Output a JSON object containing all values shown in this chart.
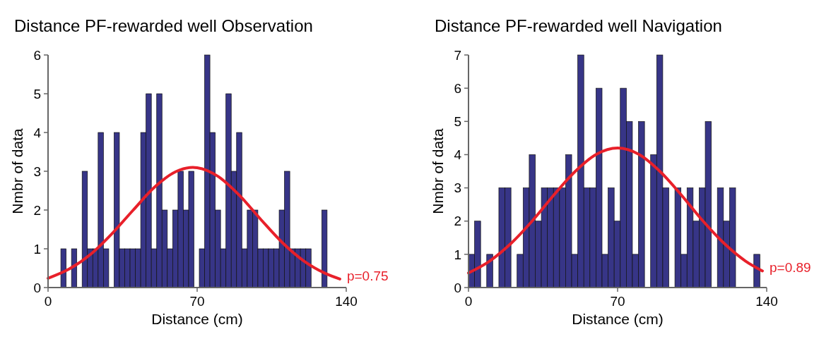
{
  "chart_data": [
    {
      "type": "histogram",
      "title": "Distance PF-rewarded well Observation",
      "xlabel": "Distance (cm)",
      "ylabel": "Nmbr of data",
      "xlim": [
        0,
        140
      ],
      "xticks": [
        0,
        70,
        140
      ],
      "ylim": [
        0,
        6
      ],
      "yticks": [
        0,
        1,
        2,
        3,
        4,
        5,
        6
      ],
      "grid": false,
      "annotations": [
        {
          "text": "p=0.75",
          "x": 137,
          "y": 0.22
        }
      ],
      "series": [
        {
          "color": "#373587",
          "bins": [
            6,
            8.5,
            11,
            13.5,
            16,
            18.5,
            21,
            23.5,
            26,
            28.5,
            31,
            33.5,
            36,
            38.5,
            41,
            43.5,
            46,
            48.5,
            51,
            53.5,
            56,
            58.5,
            61,
            63.5,
            66,
            68.5,
            71,
            73.5,
            76,
            78.5,
            81,
            83.5,
            86,
            88.5,
            91,
            93.5,
            96,
            98.5,
            101,
            103.5,
            106,
            108.5,
            111,
            113.5,
            116,
            118.5,
            121,
            123.5,
            126,
            128.5,
            131
          ],
          "values": [
            1,
            0,
            1,
            0,
            3,
            1,
            1,
            4,
            1,
            0,
            4,
            1,
            1,
            1,
            1,
            4,
            5,
            1,
            5,
            2,
            1,
            2,
            3,
            2,
            3,
            0,
            1,
            6,
            4,
            2,
            1,
            5,
            3,
            4,
            1,
            2,
            2,
            1,
            1,
            1,
            1,
            2,
            3,
            1,
            1,
            1,
            1,
            0,
            0,
            2
          ]
        },
        {
          "type": "line",
          "color": "#e8202a",
          "x": [
            0,
            10,
            20,
            30,
            40,
            50,
            60,
            68,
            70,
            80,
            90,
            100,
            110,
            120,
            130,
            137
          ],
          "values": [
            0.24,
            0.48,
            0.86,
            1.39,
            2.0,
            2.59,
            2.99,
            3.1,
            3.09,
            2.86,
            2.37,
            1.75,
            1.16,
            0.69,
            0.37,
            0.22
          ]
        }
      ]
    },
    {
      "type": "histogram",
      "title": "Distance PF-rewarded well Navigation",
      "xlabel": "Distance (cm)",
      "ylabel": "Nmbr of data",
      "xlim": [
        0,
        140
      ],
      "xticks": [
        0,
        70,
        140
      ],
      "ylim": [
        0,
        7
      ],
      "yticks": [
        0,
        1,
        2,
        3,
        4,
        5,
        6,
        7
      ],
      "grid": false,
      "annotations": [
        {
          "text": "p=0.89",
          "x": 138,
          "y": 0.5
        }
      ],
      "series": [
        {
          "color": "#373587",
          "bins": [
            0,
            2.85,
            5.7,
            8.55,
            11.4,
            14.25,
            17.1,
            19.95,
            22.8,
            25.65,
            28.5,
            31.35,
            34.2,
            37.05,
            39.9,
            42.75,
            45.6,
            48.45,
            51.3,
            54.15,
            57,
            59.85,
            62.7,
            65.55,
            68.4,
            71.25,
            74.1,
            76.95,
            79.8,
            82.65,
            85.5,
            88.35,
            91.2,
            94.05,
            96.9,
            99.75,
            102.6,
            105.45,
            108.3,
            111.15,
            114,
            116.85,
            119.7,
            122.55,
            125.4,
            128.25,
            131.1,
            133.95,
            136.8
          ],
          "values": [
            1,
            2,
            0,
            1,
            0,
            3,
            3,
            0,
            1,
            3,
            4,
            2,
            3,
            3,
            3,
            3,
            4,
            1,
            7,
            3,
            3,
            6,
            1,
            3,
            2,
            6,
            5,
            1,
            5,
            0,
            4,
            7,
            3,
            0,
            3,
            1,
            3,
            2,
            3,
            5,
            0,
            3,
            2,
            3,
            0,
            0,
            0,
            1
          ]
        },
        {
          "type": "line",
          "color": "#e8202a",
          "x": [
            0,
            10,
            20,
            30,
            40,
            50,
            60,
            70,
            80,
            90,
            100,
            110,
            120,
            130,
            138
          ],
          "values": [
            0.44,
            0.8,
            1.33,
            2.01,
            2.78,
            3.49,
            4.01,
            4.2,
            4.01,
            3.49,
            2.78,
            2.01,
            1.33,
            0.8,
            0.5
          ]
        }
      ]
    }
  ]
}
